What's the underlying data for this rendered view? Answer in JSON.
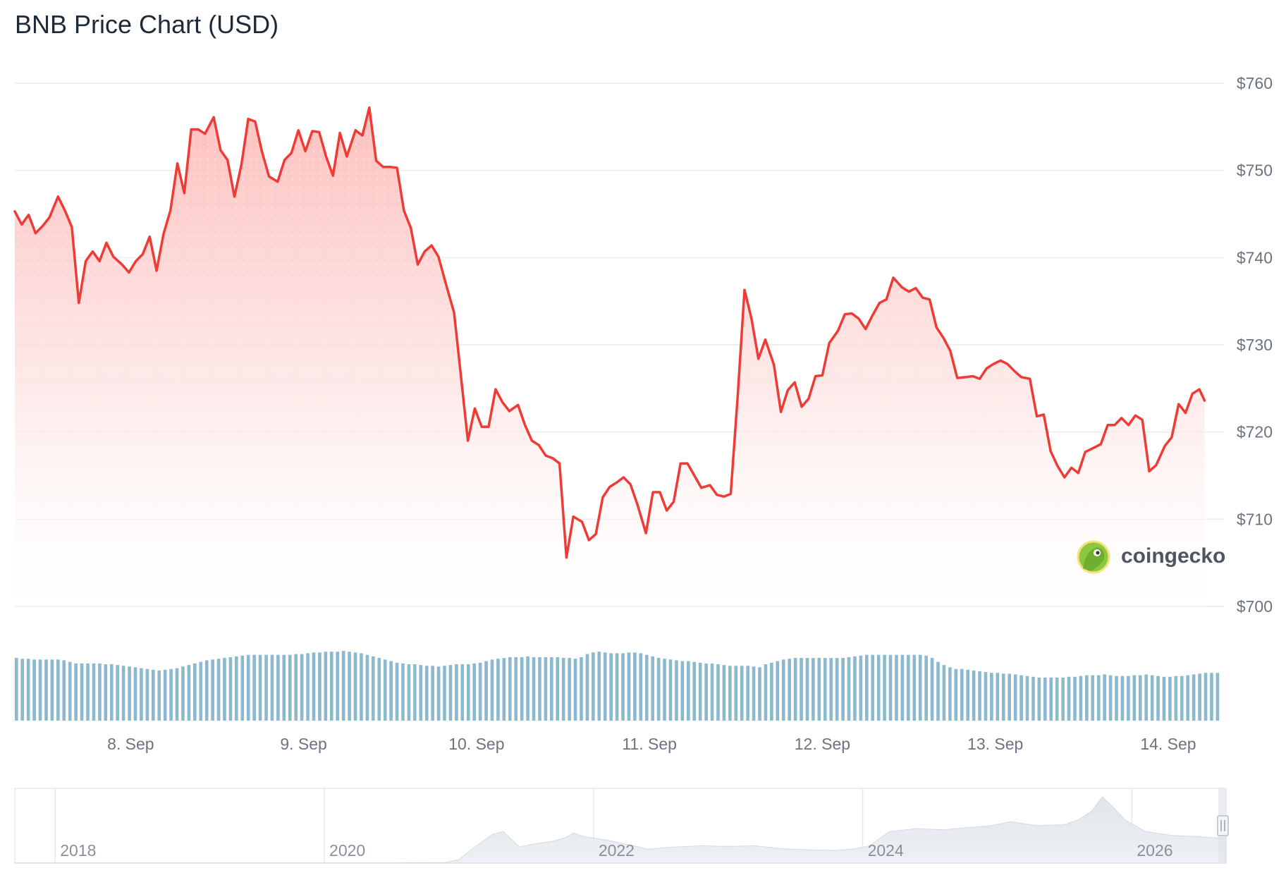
{
  "chart_data": {
    "type": "line",
    "title": "BNB Price Chart (USD)",
    "xlabel": "",
    "ylabel": "",
    "currency_prefix": "$",
    "ylim": [
      700,
      760
    ],
    "yticks": [
      700,
      710,
      720,
      730,
      740,
      750,
      760
    ],
    "x_start_day": 7.33,
    "x_end_day": 14.31,
    "xtick_labels": [
      {
        "day": 8,
        "label": "8. Sep"
      },
      {
        "day": 9,
        "label": "9. Sep"
      },
      {
        "day": 10,
        "label": "10. Sep"
      },
      {
        "day": 11,
        "label": "11. Sep"
      },
      {
        "day": 12,
        "label": "12. Sep"
      },
      {
        "day": 13,
        "label": "13. Sep"
      },
      {
        "day": 14,
        "label": "14. Sep"
      }
    ],
    "series": [
      {
        "name": "",
        "color": "#ef3b36",
        "points": [
          [
            7.33,
            745.3
          ],
          [
            7.37,
            743.8
          ],
          [
            7.41,
            744.9
          ],
          [
            7.45,
            742.8
          ],
          [
            7.49,
            743.6
          ],
          [
            7.53,
            744.6
          ],
          [
            7.58,
            747.0
          ],
          [
            7.62,
            745.4
          ],
          [
            7.66,
            743.5
          ],
          [
            7.7,
            734.8
          ],
          [
            7.74,
            739.6
          ],
          [
            7.78,
            740.7
          ],
          [
            7.82,
            739.6
          ],
          [
            7.86,
            741.7
          ],
          [
            7.9,
            740.1
          ],
          [
            7.95,
            739.2
          ],
          [
            7.99,
            738.3
          ],
          [
            8.03,
            739.6
          ],
          [
            8.07,
            740.4
          ],
          [
            8.11,
            742.4
          ],
          [
            8.15,
            738.5
          ],
          [
            8.19,
            742.7
          ],
          [
            8.23,
            745.4
          ],
          [
            8.27,
            750.8
          ],
          [
            8.31,
            747.4
          ],
          [
            8.35,
            754.7
          ],
          [
            8.39,
            754.7
          ],
          [
            8.43,
            754.2
          ],
          [
            8.48,
            756.1
          ],
          [
            8.52,
            752.3
          ],
          [
            8.56,
            751.2
          ],
          [
            8.6,
            747.0
          ],
          [
            8.64,
            750.6
          ],
          [
            8.68,
            755.9
          ],
          [
            8.72,
            755.6
          ],
          [
            8.76,
            752.1
          ],
          [
            8.8,
            749.3
          ],
          [
            8.85,
            748.7
          ],
          [
            8.89,
            751.2
          ],
          [
            8.93,
            752.0
          ],
          [
            8.97,
            754.6
          ],
          [
            9.01,
            752.2
          ],
          [
            9.05,
            754.5
          ],
          [
            9.09,
            754.4
          ],
          [
            9.13,
            751.6
          ],
          [
            9.17,
            749.4
          ],
          [
            9.21,
            754.3
          ],
          [
            9.25,
            751.6
          ],
          [
            9.3,
            754.6
          ],
          [
            9.34,
            754.0
          ],
          [
            9.38,
            757.2
          ],
          [
            9.42,
            751.1
          ],
          [
            9.46,
            750.4
          ],
          [
            9.5,
            750.4
          ],
          [
            9.54,
            750.3
          ],
          [
            9.58,
            745.4
          ],
          [
            9.62,
            743.4
          ],
          [
            9.66,
            739.2
          ],
          [
            9.7,
            740.7
          ],
          [
            9.74,
            741.4
          ],
          [
            9.78,
            740.1
          ],
          [
            9.82,
            737.2
          ],
          [
            9.87,
            733.7
          ],
          [
            9.91,
            726.4
          ],
          [
            9.95,
            719.0
          ],
          [
            9.99,
            722.7
          ],
          [
            10.03,
            720.6
          ],
          [
            10.07,
            720.6
          ],
          [
            10.11,
            724.9
          ],
          [
            10.15,
            723.4
          ],
          [
            10.19,
            722.4
          ],
          [
            10.24,
            723.1
          ],
          [
            10.28,
            720.8
          ],
          [
            10.32,
            719.0
          ],
          [
            10.36,
            718.5
          ],
          [
            10.4,
            717.3
          ],
          [
            10.44,
            717.0
          ],
          [
            10.48,
            716.4
          ],
          [
            10.52,
            705.6
          ],
          [
            10.56,
            710.3
          ],
          [
            10.61,
            709.7
          ],
          [
            10.65,
            707.6
          ],
          [
            10.69,
            708.3
          ],
          [
            10.73,
            712.5
          ],
          [
            10.77,
            713.7
          ],
          [
            10.81,
            714.2
          ],
          [
            10.85,
            714.8
          ],
          [
            10.89,
            714.0
          ],
          [
            10.93,
            711.7
          ],
          [
            10.98,
            708.4
          ],
          [
            11.02,
            713.1
          ],
          [
            11.06,
            713.1
          ],
          [
            11.1,
            711.0
          ],
          [
            11.14,
            712.0
          ],
          [
            11.18,
            716.4
          ],
          [
            11.22,
            716.4
          ],
          [
            11.26,
            715.0
          ],
          [
            11.3,
            713.6
          ],
          [
            11.35,
            713.9
          ],
          [
            11.39,
            712.8
          ],
          [
            11.43,
            712.6
          ],
          [
            11.47,
            712.9
          ],
          [
            11.51,
            724.0
          ],
          [
            11.55,
            736.3
          ],
          [
            11.59,
            733.0
          ],
          [
            11.63,
            728.4
          ],
          [
            11.67,
            730.6
          ],
          [
            11.72,
            727.7
          ],
          [
            11.76,
            722.3
          ],
          [
            11.8,
            724.8
          ],
          [
            11.84,
            725.7
          ],
          [
            11.88,
            722.9
          ],
          [
            11.92,
            723.8
          ],
          [
            11.96,
            726.4
          ],
          [
            12.0,
            726.5
          ],
          [
            12.04,
            730.2
          ],
          [
            12.09,
            731.6
          ],
          [
            12.13,
            733.5
          ],
          [
            12.17,
            733.6
          ],
          [
            12.21,
            733.0
          ],
          [
            12.25,
            731.8
          ],
          [
            12.29,
            733.4
          ],
          [
            12.33,
            734.8
          ],
          [
            12.37,
            735.2
          ],
          [
            12.41,
            737.7
          ],
          [
            12.46,
            736.6
          ],
          [
            12.5,
            736.1
          ],
          [
            12.54,
            736.5
          ],
          [
            12.58,
            735.4
          ],
          [
            12.62,
            735.2
          ],
          [
            12.66,
            732.0
          ],
          [
            12.7,
            730.8
          ],
          [
            12.74,
            729.3
          ],
          [
            12.78,
            726.2
          ],
          [
            12.83,
            726.3
          ],
          [
            12.87,
            726.4
          ],
          [
            12.91,
            726.1
          ],
          [
            12.95,
            727.3
          ],
          [
            12.99,
            727.8
          ],
          [
            13.03,
            728.2
          ],
          [
            13.07,
            727.8
          ],
          [
            13.11,
            727.0
          ],
          [
            13.15,
            726.3
          ],
          [
            13.2,
            726.1
          ],
          [
            13.24,
            721.8
          ],
          [
            13.28,
            722.0
          ],
          [
            13.32,
            717.8
          ],
          [
            13.36,
            716.1
          ],
          [
            13.4,
            714.8
          ],
          [
            13.44,
            715.9
          ],
          [
            13.48,
            715.3
          ],
          [
            13.52,
            717.7
          ],
          [
            13.57,
            718.2
          ],
          [
            13.61,
            718.6
          ],
          [
            13.65,
            720.8
          ],
          [
            13.69,
            720.8
          ],
          [
            13.73,
            721.6
          ],
          [
            13.77,
            720.8
          ],
          [
            13.81,
            721.9
          ],
          [
            13.85,
            721.4
          ],
          [
            13.89,
            715.5
          ],
          [
            13.93,
            716.2
          ],
          [
            13.98,
            718.4
          ],
          [
            14.02,
            719.4
          ],
          [
            14.06,
            723.2
          ],
          [
            14.1,
            722.2
          ],
          [
            14.14,
            724.4
          ],
          [
            14.18,
            724.9
          ],
          [
            14.21,
            723.6
          ]
        ]
      }
    ],
    "volume": {
      "color": "#8db9cf",
      "values": [
        80,
        79,
        79,
        78,
        78,
        78,
        78,
        78,
        77,
        75,
        73,
        73,
        73,
        73,
        73,
        72,
        72,
        71,
        70,
        69,
        68,
        67,
        66,
        65,
        64,
        65,
        66,
        67,
        69,
        71,
        73,
        75,
        77,
        78,
        79,
        80,
        81,
        82,
        83,
        84,
        84,
        84,
        84,
        84,
        84,
        84,
        84,
        85,
        85,
        86,
        87,
        87,
        88,
        88,
        88,
        89,
        88,
        87,
        86,
        84,
        82,
        80,
        78,
        76,
        74,
        73,
        72,
        72,
        71,
        70,
        70,
        69,
        70,
        71,
        72,
        72,
        72,
        73,
        74,
        76,
        78,
        79,
        80,
        81,
        81,
        81,
        82,
        81,
        81,
        81,
        81,
        81,
        80,
        80,
        79,
        81,
        85,
        87,
        88,
        87,
        86,
        86,
        86,
        87,
        87,
        86,
        84,
        82,
        80,
        79,
        78,
        77,
        76,
        76,
        75,
        74,
        73,
        73,
        72,
        71,
        70,
        70,
        70,
        70,
        69,
        68,
        72,
        74,
        76,
        78,
        79,
        80,
        80,
        80,
        80,
        80,
        80,
        80,
        80,
        80,
        81,
        82,
        83,
        84,
        84,
        84,
        84,
        84,
        84,
        84,
        84,
        84,
        84,
        83,
        80,
        75,
        71,
        68,
        66,
        66,
        65,
        64,
        63,
        62,
        61,
        61,
        60,
        60,
        59,
        58,
        57,
        56,
        55,
        55,
        55,
        55,
        55,
        56,
        56,
        57,
        58,
        58,
        58,
        59,
        58,
        57,
        57,
        57,
        58,
        58,
        59,
        58,
        57,
        56,
        56,
        57,
        57,
        58,
        59,
        60,
        61,
        61,
        61
      ]
    },
    "navigator": {
      "labels": [
        {
          "year": 2018,
          "label": "2018"
        },
        {
          "year": 2020,
          "label": "2020"
        },
        {
          "year": 2022,
          "label": "2022"
        },
        {
          "year": 2024,
          "label": "2024"
        },
        {
          "year": 2026,
          "label": "2026"
        }
      ],
      "year_start": 2017.7,
      "year_end": 2026.7,
      "history": [
        [
          2017.7,
          0.3
        ],
        [
          2018.0,
          0.3
        ],
        [
          2018.5,
          0.3
        ],
        [
          2019.0,
          0.3
        ],
        [
          2019.5,
          0.3
        ],
        [
          2020.0,
          0.3
        ],
        [
          2020.5,
          0.4
        ],
        [
          2020.9,
          1
        ],
        [
          2021.0,
          6
        ],
        [
          2021.1,
          25
        ],
        [
          2021.25,
          50
        ],
        [
          2021.33,
          55
        ],
        [
          2021.45,
          28
        ],
        [
          2021.55,
          33
        ],
        [
          2021.7,
          38
        ],
        [
          2021.8,
          45
        ],
        [
          2021.85,
          52
        ],
        [
          2021.95,
          45
        ],
        [
          2022.1,
          40
        ],
        [
          2022.3,
          30
        ],
        [
          2022.4,
          24
        ],
        [
          2022.6,
          28
        ],
        [
          2022.8,
          30
        ],
        [
          2023.0,
          29
        ],
        [
          2023.2,
          30
        ],
        [
          2023.4,
          25
        ],
        [
          2023.6,
          23
        ],
        [
          2023.8,
          22
        ],
        [
          2023.95,
          25
        ],
        [
          2024.05,
          30
        ],
        [
          2024.2,
          55
        ],
        [
          2024.4,
          60
        ],
        [
          2024.6,
          58
        ],
        [
          2024.8,
          62
        ],
        [
          2024.95,
          65
        ],
        [
          2025.1,
          72
        ],
        [
          2025.3,
          65
        ],
        [
          2025.5,
          67
        ],
        [
          2025.6,
          75
        ],
        [
          2025.7,
          90
        ],
        [
          2025.78,
          115
        ],
        [
          2025.85,
          100
        ],
        [
          2025.95,
          75
        ],
        [
          2026.1,
          55
        ],
        [
          2026.3,
          48
        ],
        [
          2026.5,
          46
        ],
        [
          2026.6,
          44
        ],
        [
          2026.7,
          44
        ]
      ]
    },
    "grid": true,
    "legend": "none"
  },
  "watermark": {
    "text": "coingecko"
  }
}
